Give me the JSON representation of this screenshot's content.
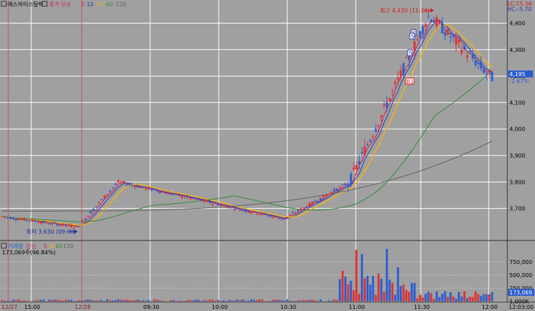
{
  "legend_top": {
    "name": "에스와이스틸텍",
    "price_label": "종가 단순",
    "ma_values": [
      "5",
      "10",
      "20",
      "60",
      "120"
    ]
  },
  "legend_volume": {
    "name": "거래량",
    "vol_label": "단순",
    "ma_values": [
      "5",
      "20",
      "60",
      "120"
    ],
    "volume_text": "173,069주(96.84%)"
  },
  "top_right": {
    "lc_label": "LC:15.56",
    "hc_label": "HC:-5.70"
  },
  "price_box": {
    "value": "4,195",
    "change": "-2.67%"
  },
  "volume_box": {
    "value": "173,069"
  },
  "annotations": {
    "high": "최고 4,430 (11:36)",
    "low": "최저 3,630 (09:00)",
    "buy_marks": [
      "5",
      "5",
      "5"
    ],
    "sell_mark": "B1"
  },
  "colors": {
    "background": "#a0a0a0",
    "up": "#e03030",
    "down": "#2a5bd0",
    "ma5": "#d01a5a",
    "ma10": "#2a3aa0",
    "ma20": "#f0b020",
    "ma60": "#2e8a3a",
    "ma120": "#606060",
    "grid": "#ffffff",
    "axis_text": "#000000"
  },
  "chart_data": [
    {
      "type": "candlestick",
      "title": "에스와이스틸텍",
      "y_ticks": [
        "4,400",
        "4,300",
        "4,200",
        "4,100",
        "4,000",
        "3,900",
        "3,800",
        "3,700"
      ],
      "ylim": [
        3600,
        4430
      ],
      "x_ticks": [
        "12/27",
        "15:00",
        "12/28",
        "09:30",
        "10:00",
        "10:30",
        "11:00",
        "11:30",
        "12:00"
      ],
      "key_points": [
        {
          "label": "start",
          "value": 3670
        },
        {
          "label": "low",
          "time": "09:00",
          "value": 3630
        },
        {
          "label": "local high",
          "time": "09:15",
          "value": 3800
        },
        {
          "label": "flat",
          "time": "10:30",
          "value": 3660
        },
        {
          "label": "breakout",
          "time": "11:00",
          "value": 3800
        },
        {
          "label": "high",
          "time": "11:36",
          "value": 4430
        },
        {
          "label": "last",
          "time": "12:04",
          "value": 4195
        }
      ],
      "ma_series": [
        {
          "name": "5",
          "start": 3670,
          "end": 4260
        },
        {
          "name": "10",
          "start": 3670,
          "end": 4270
        },
        {
          "name": "20",
          "start": 3680,
          "end": 4300
        },
        {
          "name": "60",
          "start": 3700,
          "end": 4230
        },
        {
          "name": "120",
          "start": 3690,
          "end": 3960
        }
      ],
      "grid": true
    },
    {
      "type": "bar",
      "title": "거래량",
      "y_ticks": [
        "1,000K",
        "750,000",
        "500,000",
        "250,000"
      ],
      "ylim": [
        0,
        1000000
      ],
      "x_ticks": [
        "12/27",
        "15:00",
        "12/28",
        "09:30",
        "10:00",
        "10:30",
        "11:00",
        "11:30",
        "12:00"
      ],
      "last_value": 173069,
      "peak_values": [
        980000,
        900000,
        1000000,
        650000
      ]
    }
  ]
}
